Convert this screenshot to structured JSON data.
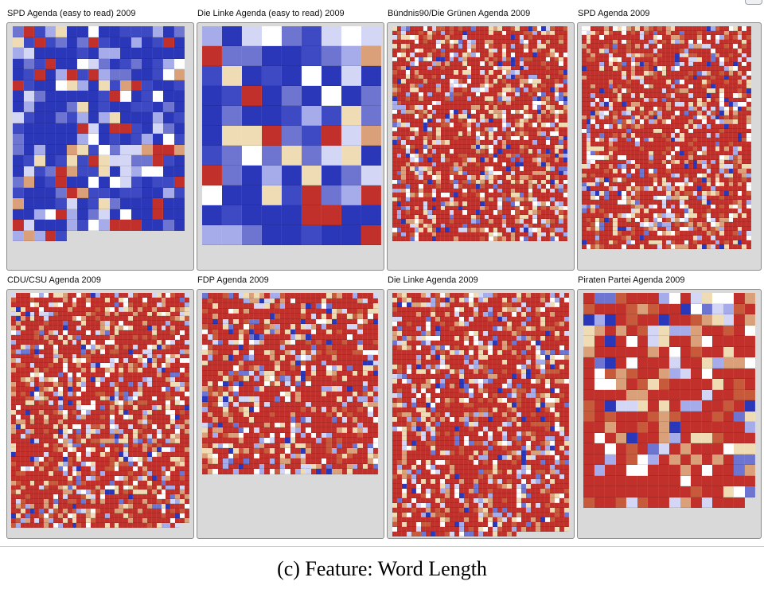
{
  "window": {
    "caption": "(c) Feature: Word Length"
  },
  "colors": {
    "palette": [
      "#2a37b9",
      "#3d4ac4",
      "#6d75d1",
      "#a6acea",
      "#d3d6f5",
      "#ffffff",
      "#f0dcb4",
      "#d9a07a",
      "#c85a3c",
      "#c1302a"
    ],
    "panel_bg": "#d9d9d9",
    "panel_border": "#8c8c8c"
  },
  "panels": [
    {
      "title": "SPD Agenda (easy to read) 2009",
      "distribution": "blue-dominant"
    },
    {
      "title": "Die Linke Agenda (easy to read) 2009",
      "distribution": "blue-dominant"
    },
    {
      "title": "Bündnis90/Die Grünen Agenda 2009",
      "distribution": "red-dominant"
    },
    {
      "title": "SPD Agenda 2009",
      "distribution": "red-dominant"
    },
    {
      "title": "CDU/CSU Agenda 2009",
      "distribution": "red-dominant"
    },
    {
      "title": "FDP Agenda 2009",
      "distribution": "red-dominant"
    },
    {
      "title": "Die Linke Agenda 2009",
      "distribution": "red-dominant"
    },
    {
      "title": "Piraten Partei Agenda 2009",
      "distribution": "red-dominant"
    }
  ]
}
